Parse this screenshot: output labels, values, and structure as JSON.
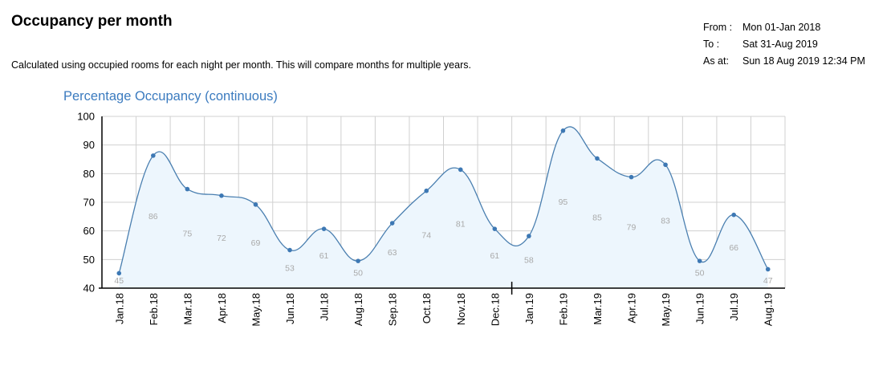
{
  "header": {
    "title": "Occupancy per month",
    "subtitle": "Calculated using occupied rooms for each night per month.  This will compare months for multiple years."
  },
  "meta": {
    "from_label": "From :",
    "from_value": "Mon 01-Jan 2018",
    "to_label": "To :",
    "to_value": "Sat 31-Aug 2019",
    "asat_label": "As at:",
    "asat_value": "Sun 18 Aug 2019 12:34 PM"
  },
  "colors": {
    "line": "#4a7fb0",
    "fill": "#edf6fd",
    "point": "#3d78b4",
    "grid": "#d0d0d0",
    "label": "#a9a9a9",
    "title": "#3b7bbf"
  },
  "chart_data": {
    "type": "area",
    "title": "Percentage Occupancy (continuous)",
    "xlabel": "",
    "ylabel": "",
    "ylim": [
      40,
      100
    ],
    "yticks": [
      40,
      50,
      60,
      70,
      80,
      90,
      100
    ],
    "grid": true,
    "categories": [
      "Jan.18",
      "Feb.18",
      "Mar.18",
      "Apr.18",
      "May.18",
      "Jun.18",
      "Jul.18",
      "Aug.18",
      "Sep.18",
      "Oct.18",
      "Nov.18",
      "Dec.18",
      "Jan.19",
      "Feb.19",
      "Mar.19",
      "Apr.19",
      "May.19",
      "Jun.19",
      "Jul.19",
      "Aug.19"
    ],
    "values": [
      45,
      86,
      75,
      72,
      69,
      53,
      61,
      50,
      63,
      74,
      81,
      61,
      58,
      95,
      85,
      79,
      83,
      50,
      66,
      47
    ],
    "exact_values": [
      45.2,
      86.3,
      74.6,
      72.3,
      69.2,
      53.3,
      60.7,
      49.5,
      62.7,
      74,
      81.4,
      60.7,
      58.2,
      95,
      85.3,
      78.8,
      83.1,
      49.5,
      65.6,
      46.6
    ]
  }
}
